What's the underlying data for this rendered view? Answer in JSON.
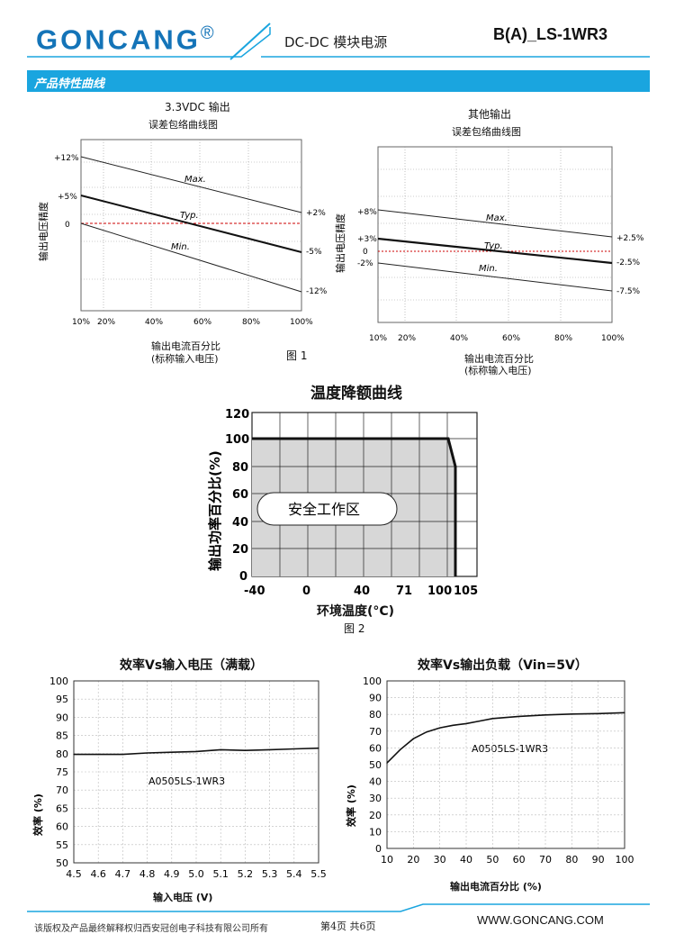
{
  "header": {
    "logo": "GONCANG",
    "logo_mark": "®",
    "category": "DC-DC 模块电源",
    "model": "B(A)_LS-1WR3"
  },
  "section": {
    "title": "产品特性曲线"
  },
  "fig1": {
    "label": "图 1",
    "left": {
      "title": "3.3VDC 输出",
      "subtitle": "误差包络曲线图",
      "ylabel": "输出电压精度",
      "xlabel": "输出电流百分比",
      "xlabel2": "(标称输入电压)",
      "x_ticks": [
        "10%",
        "20%",
        "40%",
        "60%",
        "80%",
        "100%"
      ],
      "left_labels": [
        "+12%",
        "+5%",
        "0"
      ],
      "right_labels": [
        "+2%",
        "-5%",
        "-12%"
      ],
      "lines": [
        "Max.",
        "Typ.",
        "Min."
      ]
    },
    "right": {
      "title": "其他输出",
      "subtitle": "误差包络曲线图",
      "ylabel": "输出电压精度",
      "xlabel": "输出电流百分比",
      "xlabel2": "(标称输入电压)",
      "x_ticks": [
        "10%",
        "20%",
        "40%",
        "60%",
        "80%",
        "100%"
      ],
      "left_labels": [
        "+8%",
        "+3%",
        "0",
        "-2%"
      ],
      "right_labels": [
        "+2.5%",
        "-2.5%",
        "-7.5%"
      ],
      "lines": [
        "Max.",
        "Typ.",
        "Min."
      ]
    }
  },
  "fig2": {
    "title": "温度降额曲线",
    "ylabel": "输出功率百分比(%)",
    "xlabel": "环境温度(°C)",
    "label": "图 2",
    "zone": "安全工作区",
    "y_ticks": [
      "120",
      "100",
      "80",
      "60",
      "40",
      "20",
      "0"
    ],
    "x_ticks": [
      "-40",
      "0",
      "40",
      "71",
      "100",
      "105"
    ]
  },
  "chart_data": [
    {
      "type": "line",
      "title": "效率Vs输入电压（满载）",
      "xlabel": "输入电压 (V)",
      "ylabel": "效率 (%)",
      "annotation": "A0505LS-1WR3",
      "xlim": [
        4.5,
        5.5
      ],
      "ylim": [
        50,
        100
      ],
      "x_ticks": [
        "4.5",
        "4.6",
        "4.7",
        "4.8",
        "4.9",
        "5.0",
        "5.1",
        "5.2",
        "5.3",
        "5.4",
        "5.5"
      ],
      "y_ticks": [
        "100",
        "95",
        "90",
        "85",
        "80",
        "75",
        "70",
        "65",
        "60",
        "55",
        "50"
      ],
      "series": [
        {
          "x": [
            4.5,
            4.6,
            4.7,
            4.8,
            4.9,
            5.0,
            5.1,
            5.2,
            5.3,
            5.4,
            5.5
          ],
          "y": [
            79.8,
            79.8,
            79.8,
            80.2,
            80.4,
            80.6,
            81.1,
            80.9,
            81.1,
            81.3,
            81.5
          ]
        }
      ]
    },
    {
      "type": "line",
      "title": "效率Vs输出负载（Vin=5V）",
      "xlabel": "输出电流百分比 (%)",
      "ylabel": "效率 (%)",
      "annotation": "A0505LS-1WR3",
      "xlim": [
        10,
        100
      ],
      "ylim": [
        0,
        100
      ],
      "x_ticks": [
        "10",
        "20",
        "30",
        "40",
        "50",
        "60",
        "70",
        "80",
        "90",
        "100"
      ],
      "y_ticks": [
        "100",
        "90",
        "80",
        "70",
        "60",
        "50",
        "40",
        "30",
        "20",
        "10",
        "0"
      ],
      "series": [
        {
          "x": [
            10,
            15,
            20,
            25,
            30,
            35,
            40,
            45,
            50,
            60,
            70,
            80,
            90,
            100
          ],
          "y": [
            51,
            59,
            65.5,
            69.5,
            72,
            73.5,
            74.5,
            76,
            77.5,
            78.8,
            79.7,
            80.2,
            80.5,
            81
          ]
        }
      ]
    }
  ],
  "footer": {
    "copyright": "该版权及产品最终解释权归西安冠创电子科技有限公司所有",
    "page": "第4页 共6页",
    "website": "WWW.GONCANG.COM"
  }
}
